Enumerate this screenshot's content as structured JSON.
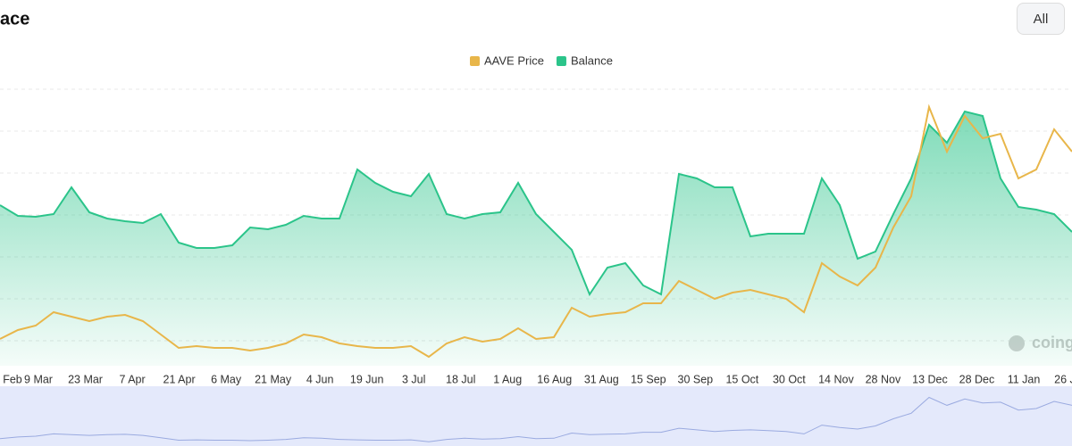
{
  "title": "ace",
  "range_button": "All",
  "watermark": "coing",
  "chart_data": {
    "type": "line",
    "x_labels": [
      "Feb",
      "9 Mar",
      "23 Mar",
      "7 Apr",
      "21 Apr",
      "6 May",
      "21 May",
      "4 Jun",
      "19 Jun",
      "3 Jul",
      "18 Jul",
      "1 Aug",
      "16 Aug",
      "31 Aug",
      "15 Sep",
      "30 Sep",
      "15 Oct",
      "30 Oct",
      "14 Nov",
      "28 Nov",
      "13 Dec",
      "28 Dec",
      "11 Jan",
      "26 J"
    ],
    "ylim": [
      0,
      310
    ],
    "series": [
      {
        "name": "AAVE Price",
        "color": "#e8b64a",
        "values": [
          30,
          40,
          45,
          60,
          55,
          50,
          55,
          57,
          50,
          35,
          20,
          22,
          20,
          20,
          17,
          20,
          25,
          35,
          32,
          25,
          22,
          20,
          20,
          22,
          10,
          25,
          32,
          27,
          30,
          42,
          30,
          32,
          65,
          55,
          58,
          60,
          70,
          70,
          95,
          85,
          75,
          82,
          85,
          80,
          75,
          60,
          115,
          100,
          90,
          110,
          155,
          190,
          290,
          240,
          280,
          255,
          260,
          210,
          220,
          265,
          240
        ]
      },
      {
        "name": "Balance",
        "color": "#2bc48a",
        "values": [
          180,
          168,
          167,
          170,
          200,
          172,
          165,
          162,
          160,
          170,
          138,
          132,
          132,
          135,
          155,
          153,
          158,
          168,
          165,
          165,
          220,
          205,
          195,
          190,
          215,
          170,
          165,
          170,
          172,
          205,
          170,
          150,
          130,
          80,
          110,
          115,
          90,
          80,
          215,
          210,
          200,
          200,
          145,
          148,
          148,
          148,
          210,
          180,
          120,
          128,
          170,
          210,
          270,
          250,
          285,
          280,
          210,
          178,
          175,
          170,
          150
        ]
      }
    ]
  }
}
